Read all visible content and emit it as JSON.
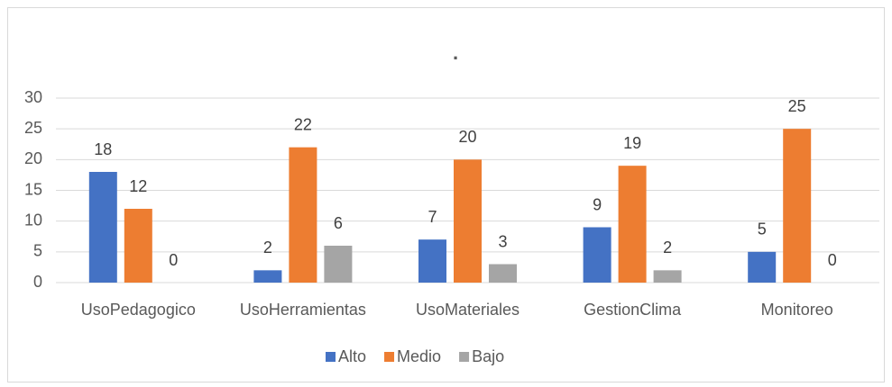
{
  "chart_data": {
    "type": "bar",
    "title": ".",
    "categories": [
      "UsoPedagogico",
      "UsoHerramientas",
      "UsoMateriales",
      "GestionClima",
      "Monitoreo"
    ],
    "series": [
      {
        "name": "Alto",
        "color": "#4472c4",
        "values": [
          18,
          2,
          7,
          9,
          5
        ]
      },
      {
        "name": "Medio",
        "color": "#ed7d31",
        "values": [
          12,
          22,
          20,
          19,
          25
        ]
      },
      {
        "name": "Bajo",
        "color": "#a5a5a5",
        "values": [
          0,
          6,
          3,
          2,
          0
        ]
      }
    ],
    "ylim": [
      0,
      30
    ],
    "yticks": [
      0,
      5,
      10,
      15,
      20,
      25,
      30
    ],
    "grid": true,
    "legend": "bottom"
  }
}
